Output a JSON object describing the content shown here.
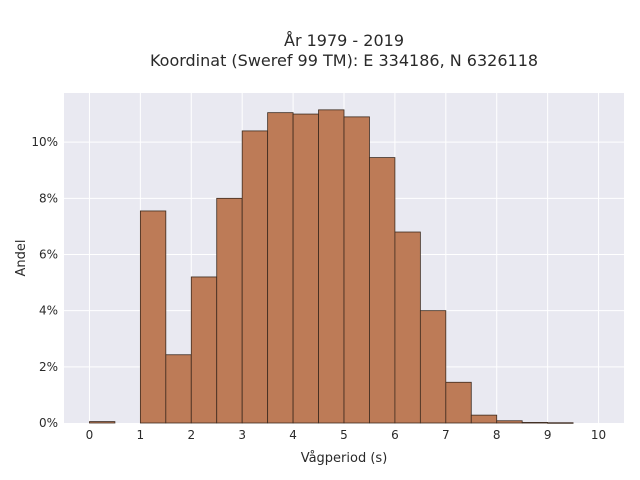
{
  "chart_data": {
    "type": "bar",
    "title_line1": "År 1979 - 2019",
    "title_line2": "Koordinat (Sweref 99 TM): E 334186, N 6326118",
    "xlabel": "Vågperiod (s)",
    "ylabel": "Andel",
    "bin_width": 0.5,
    "bins_start": [
      0,
      0.5,
      1,
      1.5,
      2,
      2.5,
      3,
      3.5,
      4,
      4.5,
      5,
      5.5,
      6,
      6.5,
      7,
      7.5,
      8,
      8.5,
      9,
      9.5
    ],
    "values": [
      0.0005,
      0,
      0.0755,
      0.0243,
      0.052,
      0.08,
      0.104,
      0.1105,
      0.11,
      0.1115,
      0.109,
      0.0945,
      0.068,
      0.04,
      0.0145,
      0.0028,
      0.0008,
      0.0002,
      0.0001,
      0
    ],
    "xlim": [
      -0.5,
      10.5
    ],
    "ylim": [
      0,
      0.1175
    ],
    "xticks": [
      0,
      1,
      2,
      3,
      4,
      5,
      6,
      7,
      8,
      9,
      10
    ],
    "xtick_labels": [
      "0",
      "1",
      "2",
      "3",
      "4",
      "5",
      "6",
      "7",
      "8",
      "9",
      "10"
    ],
    "yticks": [
      0,
      0.02,
      0.04,
      0.06,
      0.08,
      0.1
    ],
    "ytick_labels": [
      "0%",
      "2%",
      "4%",
      "6%",
      "8%",
      "10%"
    ],
    "grid": true,
    "colors": {
      "bar_fill": "#bd7b57",
      "bar_stroke": "#3d2a1e",
      "plot_bg": "#e9e9f1",
      "grid": "#ffffff"
    }
  }
}
